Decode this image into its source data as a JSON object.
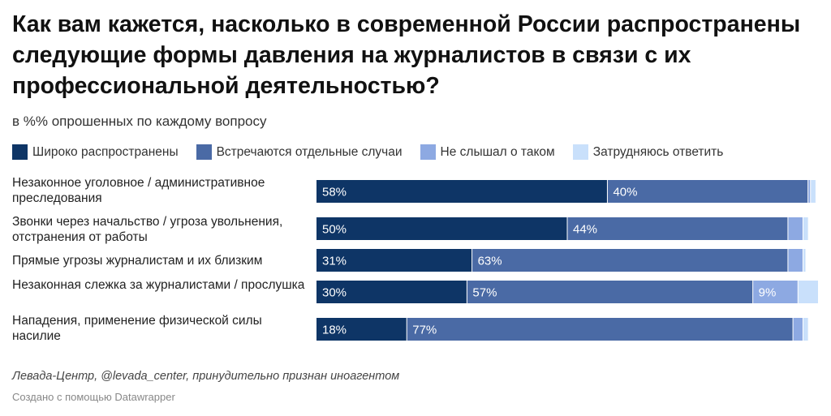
{
  "title": "Как вам кажется, насколько в современной России распространены следующие формы давления на журналистов в связи с их профессиональной деятельностью?",
  "subtitle": "в %% опрошенных по каждому вопросу",
  "legend": [
    {
      "label": "Широко распространены",
      "color": "#0e3566"
    },
    {
      "label": "Встречаются отдельные случаи",
      "color": "#4a6aa5"
    },
    {
      "label": "Не слышал о таком",
      "color": "#8da9e2"
    },
    {
      "label": "Затрудняюсь ответить",
      "color": "#c9e0fb"
    }
  ],
  "chart_data": {
    "type": "bar",
    "stacked": true,
    "orientation": "horizontal",
    "categories": [
      "Незаконное уголовное / административное преследования",
      "Звонки через начальство / угроза увольнения, отстранения от работы",
      "Прямые угрозы журналистам и их близким",
      "Незаконная слежка за журналистами / прослушка",
      "Нападения, применение физической силы насилие"
    ],
    "series": [
      {
        "name": "Широко распространены",
        "values": [
          58,
          50,
          31,
          30,
          18
        ],
        "labels": [
          "58%",
          "50%",
          "31%",
          "30%",
          "18%"
        ]
      },
      {
        "name": "Встречаются отдельные случаи",
        "values": [
          40,
          44,
          63,
          57,
          77
        ],
        "labels": [
          "40%",
          "44%",
          "63%",
          "57%",
          "77%"
        ]
      },
      {
        "name": "Не слышал о таком",
        "values": [
          0.5,
          3,
          3,
          9,
          2
        ],
        "labels": [
          "",
          "",
          "",
          "9%",
          ""
        ]
      },
      {
        "name": "Затрудняюсь ответить",
        "values": [
          1,
          1,
          0.5,
          4,
          1
        ],
        "labels": [
          "",
          "",
          "",
          "",
          ""
        ]
      }
    ],
    "xlim": [
      0,
      100
    ]
  },
  "source": "Левада-Центр, @levada_center, принудительно признан иноагентом",
  "credit": "Создано с помощью Datawrapper"
}
